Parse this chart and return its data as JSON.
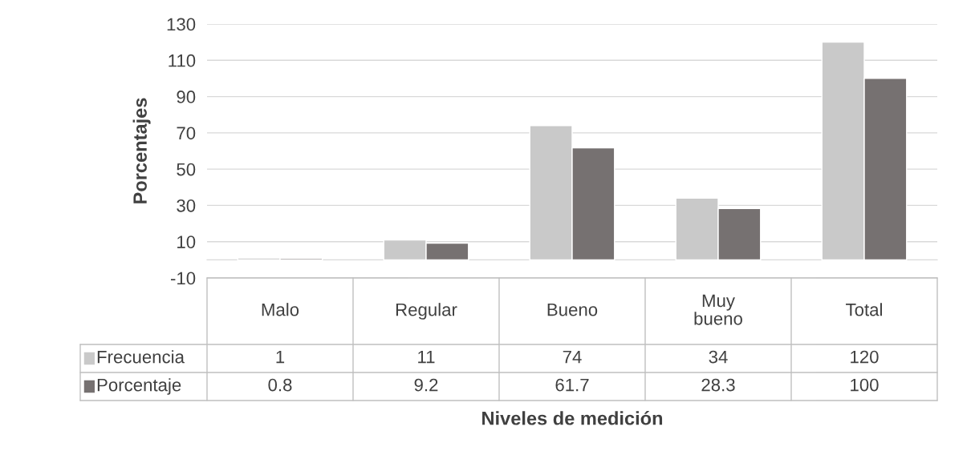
{
  "chart_data": {
    "type": "bar",
    "xlabel": "Niveles de medición",
    "ylabel": "Porcentajes",
    "categories": [
      "Malo",
      "Regular",
      "Bueno",
      "Muy\nbueno",
      "Total"
    ],
    "series": [
      {
        "name": "Frecuencia",
        "color": "#c9c9c9",
        "values": [
          1,
          11,
          74,
          34,
          120
        ]
      },
      {
        "name": "Porcentaje",
        "color": "#767171",
        "values": [
          0.8,
          9.2,
          61.7,
          28.3,
          100
        ]
      }
    ],
    "ylim": [
      -10,
      130
    ],
    "yticks": [
      -10,
      10,
      30,
      50,
      70,
      90,
      110,
      130
    ],
    "grid": "y",
    "data_labels": true,
    "legend": "bottom"
  }
}
